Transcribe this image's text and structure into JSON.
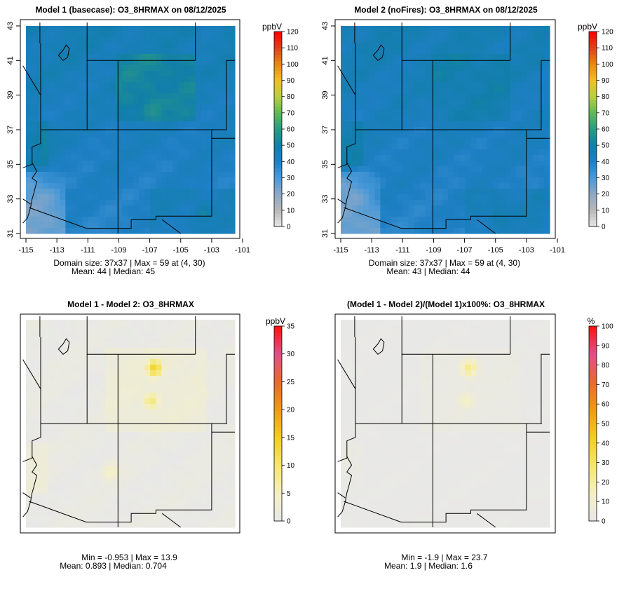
{
  "figure": {
    "panels": [
      {
        "id": "model1",
        "title": "Model 1 (basecase): O3_8HRMAX on 08/12/2025",
        "stats_line1": "Domain size: 37x37 | Max = 59 at (4, 30)",
        "stats_line2": "Mean: 44 |  Median: 45",
        "show_axes": true,
        "field": "m1",
        "colorbar": {
          "unit": "ppbV",
          "min": 0,
          "max": 120,
          "ticks": [
            "0",
            "10",
            "20",
            "30",
            "40",
            "50",
            "60",
            "70",
            "80",
            "90",
            "100",
            "110",
            "120"
          ],
          "scheme": "abs"
        }
      },
      {
        "id": "model2",
        "title": "Model 2 (noFires): O3_8HRMAX on 08/12/2025",
        "stats_line1": "Domain size: 37x37 | Max = 59 at (4, 30)",
        "stats_line2": "Mean: 43 |  Median: 44",
        "show_axes": true,
        "field": "m2",
        "colorbar": {
          "unit": "ppbV",
          "min": 0,
          "max": 120,
          "ticks": [
            "0",
            "10",
            "20",
            "30",
            "40",
            "50",
            "60",
            "70",
            "80",
            "90",
            "100",
            "110",
            "120"
          ],
          "scheme": "abs"
        }
      },
      {
        "id": "diff",
        "title": "Model 1 - Model 2: O3_8HRMAX",
        "stats_line1": "Min = -0.953 | Max = 13.9",
        "stats_line2": "Mean: 0.893 |  Median: 0.704",
        "show_axes": false,
        "field": "diff",
        "colorbar": {
          "unit": "ppbV",
          "min": 0,
          "max": 35,
          "ticks": [
            "0",
            "5",
            "10",
            "15",
            "20",
            "25",
            "30",
            "35"
          ],
          "scheme": "diff"
        }
      },
      {
        "id": "pctdiff",
        "title": "(Model 1 - Model 2)/(Model 1)x100%: O3_8HRMAX",
        "stats_line1": "Min = -1.9 | Max = 23.7",
        "stats_line2": "Mean: 1.9 |  Median: 1.6",
        "show_axes": false,
        "field": "pct",
        "colorbar": {
          "unit": "%",
          "min": 0,
          "max": 100,
          "ticks": [
            "0",
            "10",
            "20",
            "30",
            "40",
            "50",
            "60",
            "70",
            "80",
            "90",
            "100"
          ],
          "scheme": "diff"
        }
      }
    ]
  },
  "chart_data": {
    "type": "heatmap",
    "grid": {
      "nx": 37,
      "ny": 37,
      "lon_range": [
        -115,
        -101.5
      ],
      "lat_range": [
        31,
        43
      ]
    },
    "x_ticks": [
      "-115",
      "-113",
      "-111",
      "-109",
      "-107",
      "-105",
      "-103",
      "-101"
    ],
    "y_ticks": [
      "31",
      "33",
      "35",
      "37",
      "39",
      "41",
      "43"
    ],
    "colors": {
      "abs": [
        "#e8e8e8",
        "#b8b8b8",
        "#8fa8c4",
        "#4a9ad8",
        "#1e7fc4",
        "#117fa8",
        "#2a9a82",
        "#5fb85a",
        "#b8d040",
        "#f0c020",
        "#e88a10",
        "#e04020",
        "#ff0000"
      ],
      "diff": [
        "#e8e8e8",
        "#f4f0c4",
        "#f6e66c",
        "#f2cf1e",
        "#ec9c12",
        "#e86a30",
        "#e0508a",
        "#ff1010"
      ]
    },
    "hotspots": {
      "m1": [
        {
          "lon": -106.8,
          "lat": 38.4,
          "value": 59
        },
        {
          "lon": -103.6,
          "lat": 32.2,
          "value": 55
        },
        {
          "lon": -113.5,
          "lat": 36.5,
          "value": 52
        }
      ],
      "m2": [
        {
          "lon": -104.8,
          "lat": 32.2,
          "value": 55
        }
      ],
      "diff": [
        {
          "lon": -106.7,
          "lat": 40.2,
          "value": 13.9
        },
        {
          "lon": -106.9,
          "lat": 38.3,
          "value": 9
        },
        {
          "lon": -109.5,
          "lat": 34.2,
          "value": 5
        }
      ],
      "pct": [
        {
          "lon": -106.7,
          "lat": 40.2,
          "value": 23.7
        },
        {
          "lon": -106.9,
          "lat": 38.3,
          "value": 13
        }
      ]
    }
  }
}
